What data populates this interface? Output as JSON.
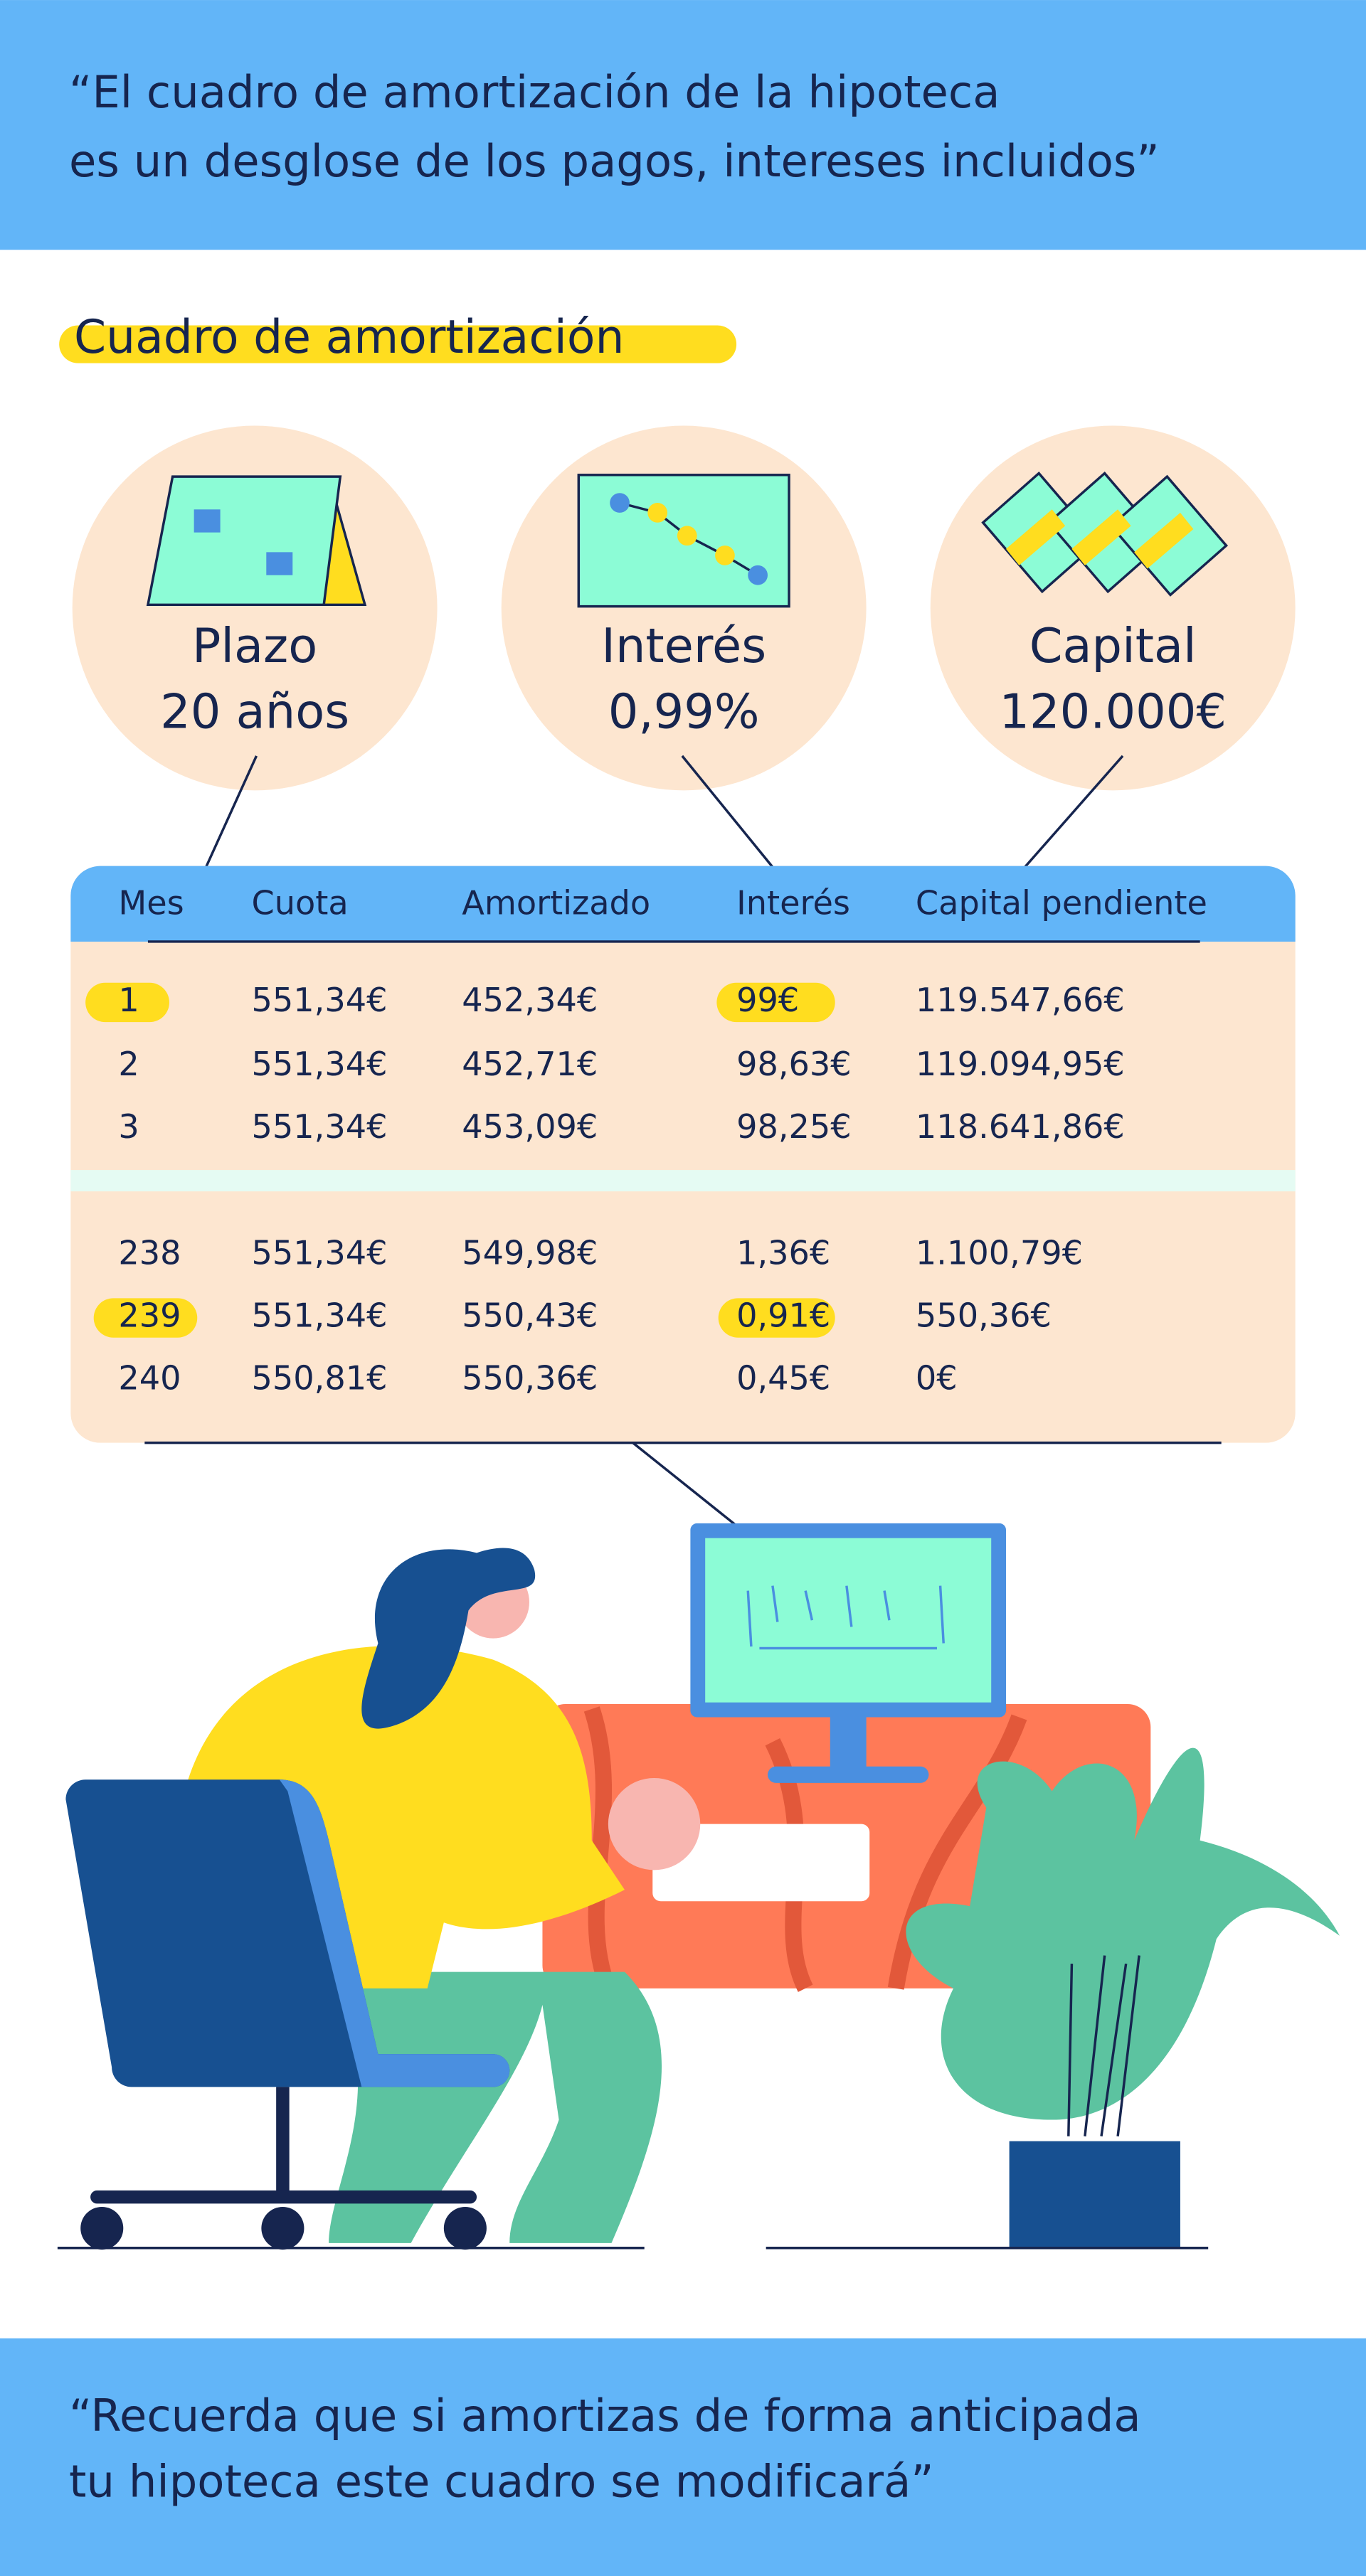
{
  "header": {
    "quote_lines": [
      "“El cuadro de amortización de la hipoteca",
      "es un desglose de los pagos, intereses incluidos”"
    ]
  },
  "section_title": "Cuadro de amortización",
  "summary": [
    {
      "label": "Plazo",
      "value": "20 años"
    },
    {
      "label": "Interés",
      "value": "0,99%"
    },
    {
      "label": "Capital",
      "value": "120.000€"
    }
  ],
  "table": {
    "columns": [
      "Mes",
      "Cuota",
      "Amortizado",
      "Interés",
      "Capital pendiente"
    ],
    "first_rows": [
      [
        "1",
        "551,34€",
        "452,34€",
        "99€",
        "119.547,66€"
      ],
      [
        "2",
        "551,34€",
        "452,71€",
        "98,63€",
        "119.094,95€"
      ],
      [
        "3",
        "551,34€",
        "453,09€",
        "98,25€",
        "118.641,86€"
      ]
    ],
    "last_rows": [
      [
        "238",
        "551,34€",
        "549,98€",
        "1,36€",
        "1.100,79€"
      ],
      [
        "239",
        "551,34€",
        "550,43€",
        "0,91€",
        "550,36€"
      ],
      [
        "240",
        "550,81€",
        "550,36€",
        "0,45€",
        "0€"
      ]
    ]
  },
  "footer": {
    "quote_lines": [
      "“Recuerda que si amortizas de forma anticipada",
      "tu hipoteca este cuadro se modificará”"
    ]
  }
}
